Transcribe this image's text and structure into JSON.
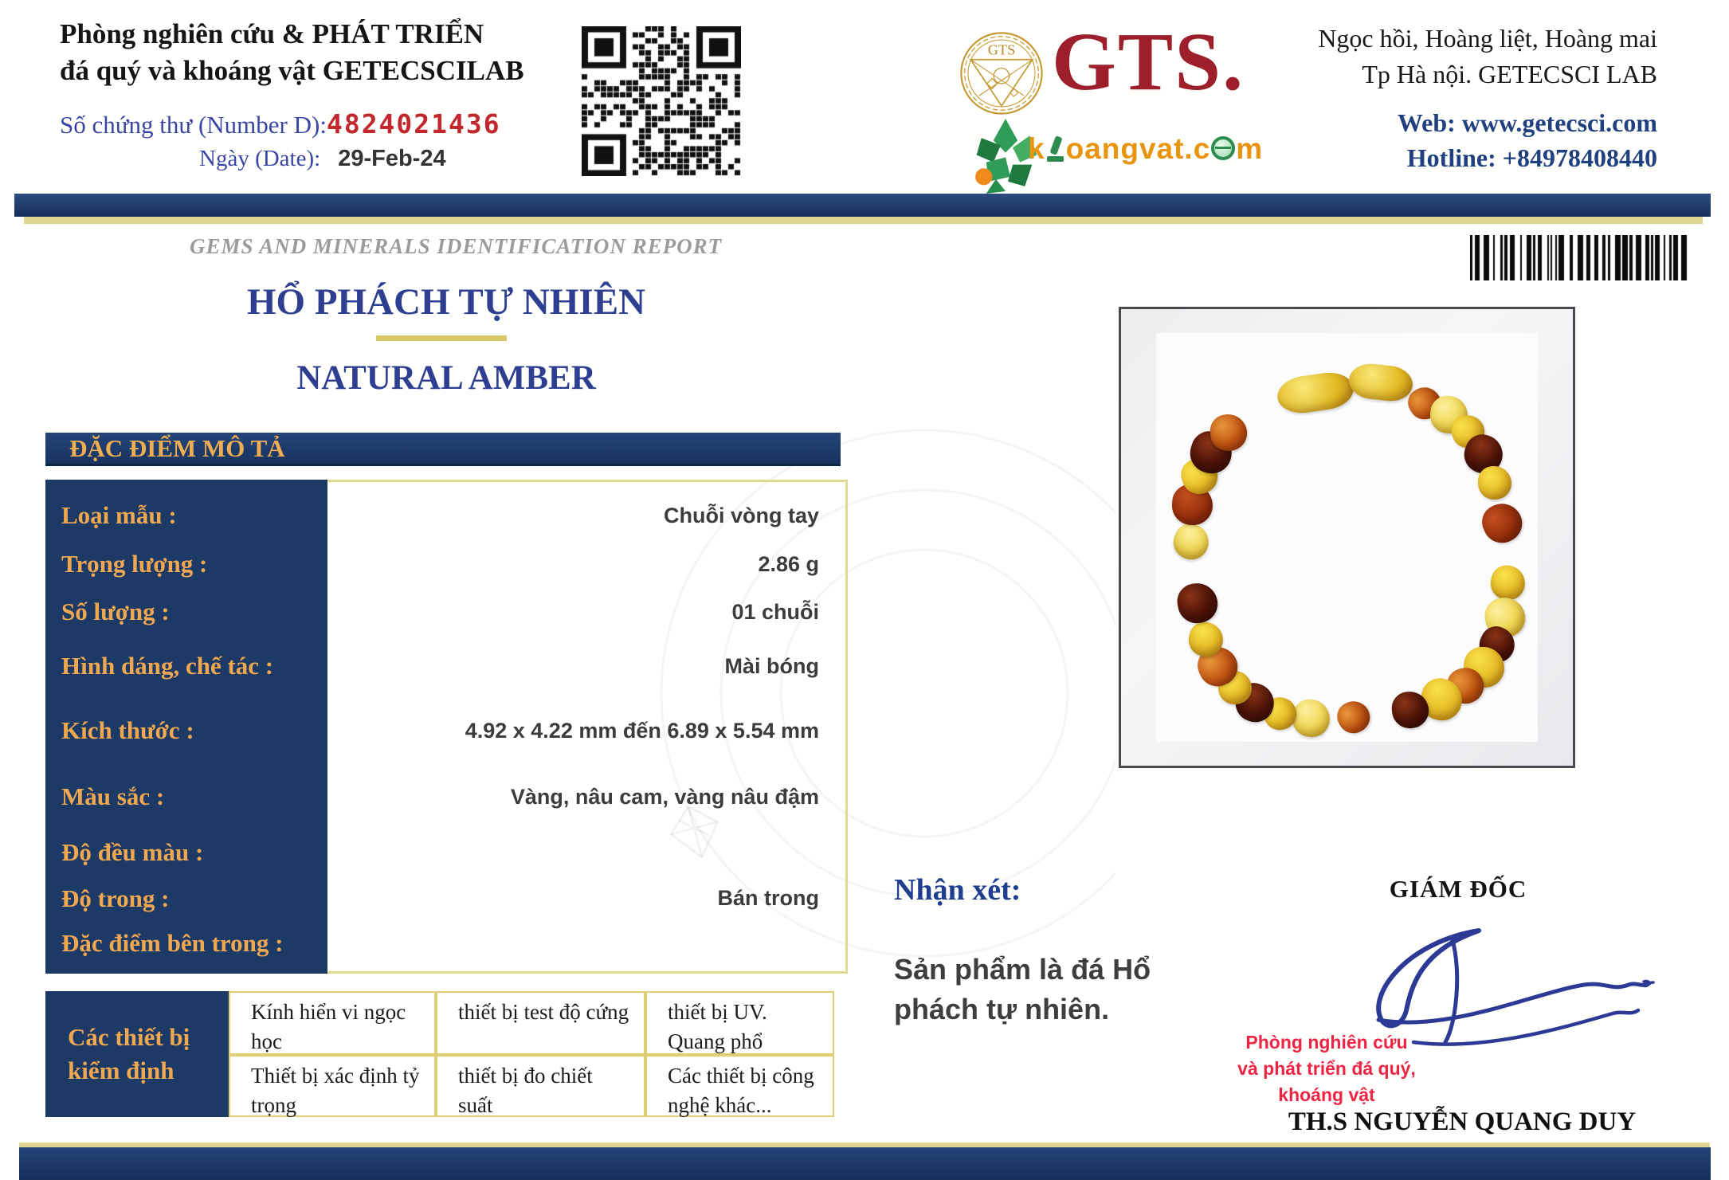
{
  "header": {
    "lab_title_line1": "Phòng nghiên cứu & PHÁT TRIỂN",
    "lab_title_line2": "đá quý và khoáng vật GETECSCILAB",
    "cert_number_label": "Số chứng thư (Number D):",
    "cert_number": "4824021436",
    "date_label": "Ngày (Date):",
    "date_value": "29-Feb-24",
    "gts_seal_text": "GTS",
    "gts_wordmark": "GTS.",
    "khoangvat_text": "khoangvat.com",
    "address_line1": "Ngọc hồi, Hoàng liệt, Hoàng mai",
    "address_line2": "Tp Hà nội. GETECSCI LAB",
    "web": "Web: www.getecsci.com",
    "hotline": "Hotline: +84978408440"
  },
  "report": {
    "report_type": "GEMS AND MINERALS IDENTIFICATION REPORT",
    "title_vi": "HỔ PHÁCH TỰ NHIÊN",
    "title_en": "NATURAL AMBER",
    "section_header": "ĐẶC ĐIỂM MÔ TẢ",
    "rows": [
      {
        "label": "Loại mẫu :",
        "value": "Chuỗi vòng tay"
      },
      {
        "label": "Trọng lượng :",
        "value": "2.86 g"
      },
      {
        "label": "Số lượng :",
        "value": "01 chuỗi"
      },
      {
        "label": "Hình dáng, chế tác :",
        "value": "Mài bóng"
      },
      {
        "label": "Kích thước :",
        "value": "4.92 x 4.22 mm đến 6.89 x 5.54 mm"
      },
      {
        "label": "Màu sắc :",
        "value": "Vàng, nâu cam, vàng nâu đậm"
      },
      {
        "label": "Độ đều màu :",
        "value": ""
      },
      {
        "label": "Độ trong :",
        "value": "Bán trong"
      },
      {
        "label": "Đặc điểm bên trong :",
        "value": ""
      }
    ],
    "remark_label": "Nhận xét:",
    "remark_text": "Sản phẩm là đá Hổ phách tự nhiên.",
    "director_label": "GIÁM ĐỐC",
    "stamp_line1": "Phòng nghiên cứu",
    "stamp_line2": "và phát triển đá quý,",
    "stamp_line3": "khoáng vật",
    "director_name": "TH.S NGUYỄN QUANG DUY",
    "equipment": {
      "header": "Các thiết bị kiểm định",
      "cells": [
        [
          "Kính hiển vi ngọc học",
          "thiết bị test độ cứng",
          "thiết bị  UV. Quang phổ"
        ],
        [
          "Thiết bị xác định tỷ trọng",
          "thiết bị  đo chiết suất",
          "Các thiết bị công nghệ khác..."
        ]
      ]
    }
  },
  "photo": {
    "subject": "amber bead bracelet",
    "bead_sequence": [
      "o",
      "l",
      "y",
      "d",
      "y",
      "r",
      "y",
      "l",
      "d",
      "y",
      "o",
      "y",
      "d",
      "o",
      "l",
      "y",
      "d",
      "y",
      "o",
      "y",
      "d",
      "l",
      "r",
      "y",
      "d",
      "o"
    ],
    "palette": {
      "y": [
        "#f8e14b",
        "#e7bb25",
        "#b98a12"
      ],
      "l": [
        "#fbf09f",
        "#f0d64f",
        "#cfa81f"
      ],
      "o": [
        "#e8973a",
        "#c05312",
        "#7e2a06"
      ],
      "r": [
        "#c44f1f",
        "#952f0c",
        "#5f1605"
      ],
      "d": [
        "#8a3415",
        "#481107",
        "#1f0602"
      ]
    }
  },
  "colors": {
    "navy_bar": "#1d3a69",
    "navy_panel": "#1d3a66",
    "gold_label": "#efa850",
    "gold_strip": "#ddd592",
    "title_blue": "#2e3f92",
    "cert_number_red": "#c1272d",
    "blue_label": "#3a46a5",
    "value_text": "#3c3c3c",
    "stamp_red": "#ee2444",
    "signature_blue": "#2c3a96",
    "gts_red": "#9c1f2b",
    "logo_orange": "#e8940e",
    "table_border_yellow": "#dcdc90"
  }
}
